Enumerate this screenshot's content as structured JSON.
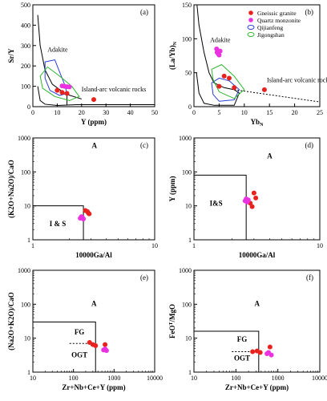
{
  "colors": {
    "gneissic_granite": "#e8231f",
    "quartz_monzonite": "#ea32e0",
    "qijianfeng": "#2b3fd6",
    "jigongshan": "#2fb52f",
    "axis": "#000000"
  },
  "chart_data": [
    {
      "id": "a",
      "type": "scatter",
      "panel_label": "(a)",
      "xlabel": "Y (ppm)",
      "ylabel": "Sr/Y",
      "xlim": [
        0,
        50
      ],
      "ylim": [
        0,
        500
      ],
      "xscale": "linear",
      "yscale": "linear",
      "xticks": [
        0,
        10,
        20,
        30,
        40,
        50
      ],
      "yticks": [
        0,
        100,
        200,
        300,
        400,
        500
      ],
      "annotations": [
        "Adakite",
        "Island-arc volcanic rocks"
      ],
      "series": [
        {
          "name": "Gneissic granite",
          "points": [
            [
              10,
              80
            ],
            [
              12,
              70
            ],
            [
              14,
              65
            ],
            [
              25,
              35
            ]
          ]
        },
        {
          "name": "Quartz monzonite",
          "points": [
            [
              12,
              102
            ],
            [
              13,
              100
            ],
            [
              14,
              98
            ],
            [
              15,
              97
            ]
          ]
        },
        {
          "name": "Qijianfeng",
          "outline": [
            [
              5,
              220
            ],
            [
              9,
              230
            ],
            [
              11,
              170
            ],
            [
              13,
              110
            ],
            [
              14,
              65
            ],
            [
              11,
              55
            ],
            [
              7,
              80
            ],
            [
              5,
              140
            ]
          ]
        },
        {
          "name": "Jigongshan",
          "outline": [
            [
              3,
              150
            ],
            [
              6,
              195
            ],
            [
              11,
              150
            ],
            [
              16,
              100
            ],
            [
              19,
              50
            ],
            [
              15,
              30
            ],
            [
              9,
              50
            ],
            [
              4,
              90
            ]
          ]
        }
      ]
    },
    {
      "id": "b",
      "type": "scatter",
      "panel_label": "(b)",
      "xlabel": "YbN",
      "ylabel": "(La/Yb)N",
      "xlim": [
        0,
        25
      ],
      "ylim": [
        0,
        150
      ],
      "xscale": "linear",
      "yscale": "linear",
      "xticks": [
        0,
        5,
        10,
        15,
        20,
        25
      ],
      "yticks": [
        0,
        50,
        100,
        150
      ],
      "annotations": [
        "Adakite",
        "Island-arc volcanic rocks"
      ],
      "legend": [
        "Gneissic granite",
        "Quartz monzonite",
        "Qijianfeng",
        "Jigongshan"
      ],
      "legend_position": "top-right",
      "series": [
        {
          "name": "Gneissic granite",
          "points": [
            [
              5,
              30
            ],
            [
              6,
              45
            ],
            [
              7,
              42
            ],
            [
              8,
              28
            ],
            [
              14,
              25
            ]
          ]
        },
        {
          "name": "Quartz monzonite",
          "points": [
            [
              4.5,
              85
            ],
            [
              4.6,
              80
            ],
            [
              4.8,
              78
            ],
            [
              5,
              76
            ],
            [
              5.2,
              82
            ]
          ]
        },
        {
          "name": "Qijianfeng",
          "outline": [
            [
              3.5,
              35
            ],
            [
              5,
              42
            ],
            [
              7,
              38
            ],
            [
              9,
              25
            ],
            [
              8,
              10
            ],
            [
              5,
              8
            ],
            [
              3.8,
              18
            ]
          ]
        },
        {
          "name": "Jigongshan",
          "outline": [
            [
              3.5,
              55
            ],
            [
              5.5,
              62
            ],
            [
              8,
              45
            ],
            [
              10,
              25
            ],
            [
              8,
              12
            ],
            [
              5,
              22
            ],
            [
              3.8,
              40
            ]
          ]
        }
      ]
    },
    {
      "id": "c",
      "type": "scatter",
      "panel_label": "(c)",
      "xlabel": "10000Ga/Al",
      "ylabel": "(K2O+Na2O)/CaO",
      "xlim": [
        1,
        10
      ],
      "ylim": [
        1,
        1000
      ],
      "xscale": "log",
      "yscale": "log",
      "xticks": [
        1,
        10
      ],
      "yticks": [
        1,
        10,
        100,
        1000
      ],
      "field_labels": [
        "A",
        "I & S"
      ],
      "series": [
        {
          "name": "Gneissic granite",
          "points": [
            [
              2.7,
              7.3
            ],
            [
              2.85,
              6.2
            ],
            [
              2.9,
              5.8
            ],
            [
              2.8,
              6.8
            ]
          ]
        },
        {
          "name": "Quartz monzonite",
          "points": [
            [
              2.45,
              4.3
            ],
            [
              2.55,
              4.6
            ],
            [
              2.6,
              4.1
            ],
            [
              2.5,
              4.8
            ]
          ]
        }
      ]
    },
    {
      "id": "d",
      "type": "scatter",
      "panel_label": "(d)",
      "xlabel": "10000Ga/Al",
      "ylabel": "Y (ppm)",
      "xlim": [
        1,
        10
      ],
      "ylim": [
        1,
        1000
      ],
      "xscale": "log",
      "yscale": "log",
      "xticks": [
        1,
        10
      ],
      "yticks": [
        1,
        10,
        100,
        1000
      ],
      "field_labels": [
        "A",
        "I&S"
      ],
      "series": [
        {
          "name": "Gneissic granite",
          "points": [
            [
              2.8,
              12
            ],
            [
              3.0,
              24
            ],
            [
              3.1,
              17
            ],
            [
              2.9,
              9.5
            ]
          ]
        },
        {
          "name": "Quartz monzonite",
          "points": [
            [
              2.55,
              14
            ],
            [
              2.7,
              15
            ],
            [
              2.65,
              13
            ],
            [
              2.6,
              16
            ]
          ]
        }
      ]
    },
    {
      "id": "e",
      "type": "scatter",
      "panel_label": "(e)",
      "xlabel": "Zr+Nb+Ce+Y (ppm)",
      "ylabel": "(Na2O+K2O)/CaO",
      "xlim": [
        10,
        10000
      ],
      "ylim": [
        1,
        1000
      ],
      "xscale": "log",
      "yscale": "log",
      "xticks": [
        10,
        100,
        1000,
        10000
      ],
      "yticks": [
        1,
        10,
        100,
        1000
      ],
      "field_labels": [
        "A",
        "FG",
        "OGT"
      ],
      "series": [
        {
          "name": "Gneissic granite",
          "points": [
            [
              250,
              7.5
            ],
            [
              300,
              6.5
            ],
            [
              350,
              6
            ],
            [
              600,
              6.5
            ]
          ]
        },
        {
          "name": "Quartz monzonite",
          "points": [
            [
              550,
              4.5
            ],
            [
              600,
              4.8
            ],
            [
              650,
              4.3
            ]
          ]
        }
      ]
    },
    {
      "id": "f",
      "type": "scatter",
      "panel_label": "(f)",
      "xlabel": "Zr+Nb+Ce+Y (ppm)",
      "ylabel": "FeOT/MgO",
      "xlim": [
        10,
        10000
      ],
      "ylim": [
        1,
        1000
      ],
      "xscale": "log",
      "yscale": "log",
      "xticks": [
        10,
        100,
        1000,
        10000
      ],
      "yticks": [
        1,
        10,
        100,
        1000
      ],
      "field_labels": [
        "A",
        "FG",
        "OGT"
      ],
      "series": [
        {
          "name": "Gneissic granite",
          "points": [
            [
              250,
              4
            ],
            [
              320,
              4.2
            ],
            [
              380,
              3.8
            ],
            [
              650,
              5.5
            ]
          ]
        },
        {
          "name": "Quartz monzonite",
          "points": [
            [
              550,
              3.5
            ],
            [
              600,
              3.8
            ],
            [
              700,
              3.2
            ]
          ]
        }
      ]
    }
  ]
}
